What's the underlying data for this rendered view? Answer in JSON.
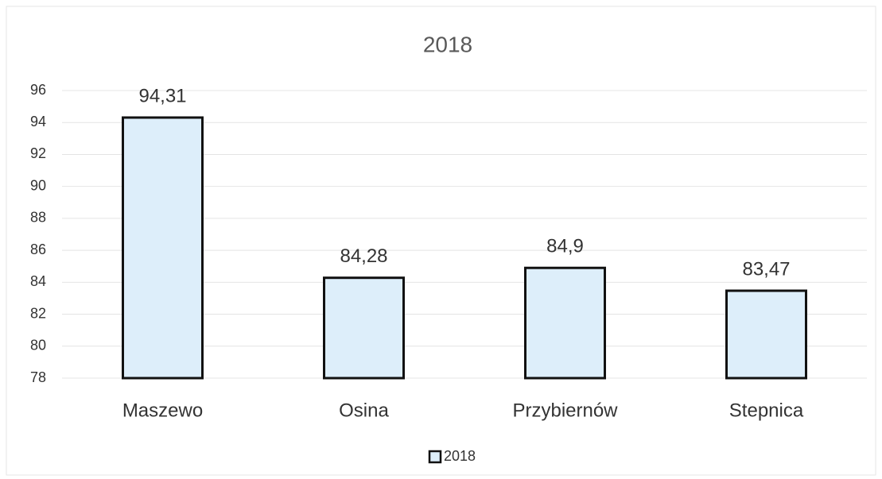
{
  "chart_data": {
    "type": "bar",
    "title": "2018",
    "categories": [
      "Maszewo",
      "Osina",
      "Przybiernów",
      "Stepnica"
    ],
    "series": [
      {
        "name": "2018",
        "color": "#ddeefa",
        "values": [
          94.31,
          84.28,
          84.9,
          83.47
        ],
        "value_labels": [
          "94,31",
          "84,28",
          "84,9",
          "83,47"
        ]
      }
    ],
    "ylim": [
      78,
      96
    ],
    "yticks": [
      78,
      80,
      82,
      84,
      86,
      88,
      90,
      92,
      94,
      96
    ],
    "grid": true,
    "legend": "bottom"
  }
}
